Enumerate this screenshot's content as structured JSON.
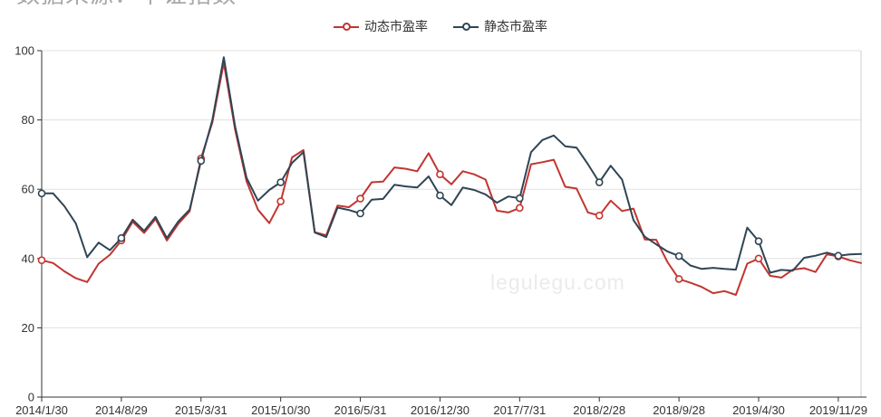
{
  "header": {
    "source_note": "数据来源：中证指数"
  },
  "watermark": "legulegu.com",
  "chart_data": {
    "type": "line",
    "title": "",
    "xlabel": "",
    "ylabel": "",
    "ylim": [
      0,
      100
    ],
    "y_ticks": [
      0,
      20,
      40,
      60,
      80,
      100
    ],
    "grid": true,
    "legend_position": "top-center",
    "tick_every": 7,
    "x_tick_labels": [
      "2014/1/30",
      "2014/8/29",
      "2015/3/31",
      "2015/10/30",
      "2016/5/31",
      "2016/12/30",
      "2017/7/31",
      "2018/2/28",
      "2018/9/28",
      "2019/4/30",
      "2019/11/29"
    ],
    "axis_color": "#333333",
    "grid_color": "#e0e0e0",
    "border_color": "#cccccc",
    "series": [
      {
        "name": "动态市盈率",
        "color": "#c23531",
        "values": [
          39.5,
          38.7,
          36.3,
          34.3,
          33.2,
          38.5,
          41.1,
          45.2,
          50.6,
          47.4,
          51.4,
          45.2,
          50.0,
          53.6,
          68.9,
          79.3,
          96.5,
          77.2,
          62.3,
          54.1,
          50.2,
          56.5,
          69.2,
          71.3,
          47.6,
          46.7,
          55.3,
          54.8,
          57.3,
          62.0,
          62.2,
          66.3,
          65.9,
          65.2,
          70.4,
          64.3,
          61.4,
          65.2,
          64.3,
          62.8,
          53.8,
          53.3,
          54.6,
          67.2,
          67.8,
          68.5,
          60.7,
          60.2,
          53.3,
          52.4,
          56.7,
          53.7,
          54.4,
          45.5,
          45.4,
          38.9,
          34.1,
          33.0,
          31.8,
          30.0,
          30.6,
          29.5,
          38.5,
          40.0,
          35.0,
          34.5,
          36.8,
          37.2,
          36.1,
          41.2,
          40.6,
          39.5,
          38.7
        ]
      },
      {
        "name": "静态市盈率",
        "color": "#2f4554",
        "values": [
          58.8,
          58.8,
          55.1,
          50.1,
          40.4,
          44.6,
          42.4,
          45.9,
          51.2,
          48.0,
          52.0,
          45.9,
          50.7,
          54.1,
          68.2,
          80.0,
          98.1,
          78.1,
          63.3,
          56.7,
          59.8,
          62.0,
          67.6,
          70.7,
          47.5,
          46.2,
          54.7,
          54.0,
          53.0,
          57.0,
          57.2,
          61.3,
          60.8,
          60.5,
          63.7,
          58.2,
          55.4,
          60.5,
          59.8,
          58.5,
          56.1,
          57.9,
          57.4,
          70.7,
          74.2,
          75.5,
          72.4,
          72.0,
          67.2,
          62.0,
          66.8,
          62.8,
          51.1,
          46.3,
          44.1,
          42.0,
          40.7,
          38.0,
          37.0,
          37.3,
          37.0,
          36.8,
          48.9,
          45.0,
          35.9,
          36.7,
          36.5,
          40.2,
          40.8,
          41.7,
          40.8,
          41.2,
          41.3
        ]
      }
    ]
  }
}
